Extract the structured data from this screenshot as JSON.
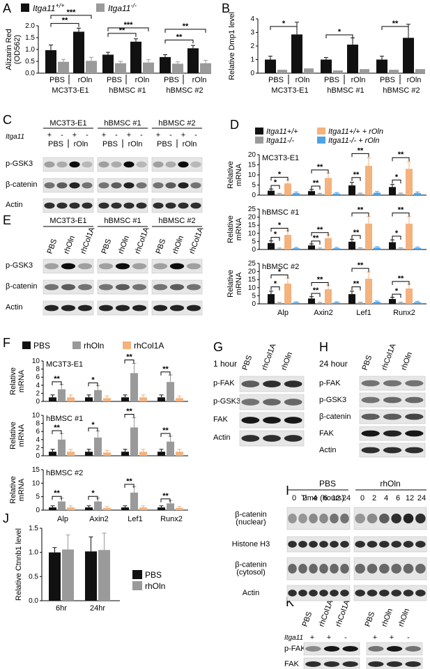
{
  "panel_letters": [
    "A",
    "B",
    "C",
    "D",
    "E",
    "F",
    "G",
    "H",
    "I",
    "J",
    "K"
  ],
  "legend_A": [
    {
      "label": "Itga11",
      "sup": "+/+",
      "color": "#111111"
    },
    {
      "label": "Itga11",
      "sup": "-/-",
      "color": "#9a9a9a"
    }
  ],
  "colors": {
    "wt": "#111111",
    "ko": "#9a9a9a",
    "wt_rOln": "#f4b27d",
    "ko_rOln": "#4ea3e6",
    "pbs": "#111111",
    "rhOln": "#9a9a9a",
    "rhCol1A": "#f4b27d"
  },
  "stars": [
    "*",
    "**",
    "***"
  ],
  "chart_data": [
    {
      "panel": "A",
      "type": "bar",
      "ylabel": "Alizarin Red\n(OD562)",
      "ylim": [
        0,
        2.0
      ],
      "yticks": [
        "0.0",
        "0.5",
        "1.0",
        "1.5",
        "2.0"
      ],
      "groups": [
        "MC3T3-E1",
        "hBMSC #1",
        "hBMSC #2"
      ],
      "conditions": [
        "PBS",
        "rOln"
      ],
      "series": [
        {
          "name": "Itga11+/+",
          "values": [
            0.97,
            1.75,
            0.78,
            1.33,
            0.68,
            1.05
          ]
        },
        {
          "name": "Itga11-/-",
          "values": [
            0.48,
            0.52,
            0.42,
            0.45,
            0.4,
            0.42
          ]
        }
      ],
      "errors": [
        [
          0.22,
          0.15,
          0.1,
          0.12,
          0.1,
          0.12
        ],
        [
          0.1,
          0.15,
          0.08,
          0.12,
          0.08,
          0.12
        ]
      ]
    },
    {
      "panel": "B",
      "type": "bar",
      "ylabel": "Relative Dmp1 level",
      "ylim": [
        0,
        4
      ],
      "yticks": [
        "0",
        "1",
        "2",
        "3",
        "4"
      ],
      "groups": [
        "MC3T3-E1",
        "hBMSC #1",
        "hBMSC #2"
      ],
      "conditions": [
        "PBS",
        "rOln"
      ],
      "series": [
        {
          "name": "Itga11+/+",
          "values": [
            1.0,
            2.85,
            1.0,
            2.1,
            1.0,
            2.6
          ]
        },
        {
          "name": "Itga11-/-",
          "values": [
            0.25,
            0.35,
            0.2,
            0.3,
            0.25,
            0.3
          ]
        }
      ],
      "errors": [
        [
          0.25,
          0.9,
          0.15,
          0.5,
          0.25,
          1.0
        ],
        [
          0.05,
          0.08,
          0.05,
          0.06,
          0.05,
          0.06
        ]
      ]
    },
    {
      "panel": "D",
      "type": "bar",
      "ylabel": "Relative\nmRNA",
      "categories": [
        "Alp",
        "Axin2",
        "Lef1",
        "Runx2"
      ],
      "legend": [
        "Itga11+/+",
        "Itga11-/-",
        "Itga11+/+ + rOln",
        "Itga11-/- + rOln"
      ],
      "subplots": [
        {
          "label": "MC3T3-E1",
          "ylim": [
            0,
            20
          ],
          "yticks": [
            "0",
            "5",
            "10",
            "15",
            "20"
          ],
          "values": [
            [
              2.2,
              0.5,
              5.8,
              1.0
            ],
            [
              2.0,
              0.5,
              8.5,
              0.8
            ],
            [
              4.8,
              0.6,
              14.5,
              1.2
            ],
            [
              4.0,
              0.6,
              13.0,
              1.0
            ]
          ]
        },
        {
          "label": "hBMSC #1",
          "ylim": [
            0,
            25
          ],
          "yticks": [
            "0",
            "5",
            "10",
            "15",
            "20",
            "25"
          ],
          "values": [
            [
              4.0,
              0.5,
              9.0,
              0.8
            ],
            [
              2.5,
              0.5,
              7.0,
              0.8
            ],
            [
              4.8,
              0.6,
              16.0,
              1.2
            ],
            [
              4.5,
              0.6,
              16.0,
              1.0
            ]
          ]
        },
        {
          "label": "hBMSC #2",
          "ylim": [
            0,
            25
          ],
          "yticks": [
            "0",
            "5",
            "10",
            "15",
            "20",
            "25"
          ],
          "values": [
            [
              6.0,
              0.5,
              12.5,
              0.8
            ],
            [
              3.3,
              0.5,
              9.0,
              0.8
            ],
            [
              6.0,
              0.6,
              15.5,
              1.2
            ],
            [
              3.0,
              0.6,
              9.5,
              1.0
            ]
          ]
        }
      ]
    },
    {
      "panel": "F",
      "type": "bar",
      "ylabel": "Relative\nmRNA",
      "categories": [
        "Alp",
        "Axin2",
        "Lef1",
        "Runx2"
      ],
      "legend": [
        "PBS",
        "rhOln",
        "rhCol1A"
      ],
      "subplots": [
        {
          "label": "MC3T3-E1",
          "ylim": [
            0,
            10
          ],
          "yticks": [
            "0",
            "2",
            "4",
            "6",
            "8",
            "10"
          ],
          "values": [
            [
              1.0,
              3.0,
              1.0
            ],
            [
              1.0,
              2.8,
              0.8
            ],
            [
              1.0,
              7.0,
              1.0
            ],
            [
              1.0,
              4.8,
              0.8
            ]
          ]
        },
        {
          "label": "hBMSC #1",
          "ylim": [
            0,
            10
          ],
          "yticks": [
            "0",
            "2",
            "4",
            "6",
            "8",
            "10"
          ],
          "values": [
            [
              1.0,
              4.0,
              1.0
            ],
            [
              1.0,
              4.5,
              0.8
            ],
            [
              1.0,
              7.0,
              1.0
            ],
            [
              1.0,
              3.5,
              1.0
            ]
          ]
        },
        {
          "label": "hBMSC #2",
          "ylim": [
            0,
            15
          ],
          "yticks": [
            "0",
            "5",
            "10",
            "15"
          ],
          "values": [
            [
              1.0,
              3.2,
              1.0
            ],
            [
              1.0,
              3.2,
              0.8
            ],
            [
              1.0,
              6.5,
              1.0
            ],
            [
              1.0,
              2.5,
              0.8
            ]
          ]
        }
      ]
    },
    {
      "panel": "J",
      "type": "bar",
      "ylabel": "Relative Ctnnb1 level",
      "ylim": [
        0,
        1.5
      ],
      "yticks": [
        "0.0",
        "0.5",
        "1.0",
        "1.5"
      ],
      "categories": [
        "6hr",
        "24hr"
      ],
      "legend": [
        "PBS",
        "rhOln"
      ],
      "series": [
        {
          "name": "PBS",
          "values": [
            1.0,
            1.02
          ]
        },
        {
          "name": "rhOln",
          "values": [
            1.06,
            1.05
          ]
        }
      ],
      "errors": [
        [
          0.1,
          0.3
        ],
        [
          0.3,
          0.35
        ]
      ]
    }
  ],
  "panel_C": {
    "columns": [
      "MC3T3-E1",
      "hBMSC #1",
      "hBMSC #2"
    ],
    "gene": "Itga11",
    "signs": [
      "+",
      "-",
      "+",
      "-"
    ],
    "conds": [
      "PBS",
      "rOln"
    ],
    "rows": [
      "p-GSK3",
      "β-catenin",
      "Actin"
    ]
  },
  "panel_E": {
    "columns": [
      "MC3T3-E1",
      "hBMSC #1",
      "hBMSC #2"
    ],
    "lanes": [
      "PBS",
      "rhOln",
      "rhCol1A"
    ],
    "rows": [
      "p-GSK3",
      "β-catenin",
      "Actin"
    ]
  },
  "panel_G": {
    "time": "1 hour",
    "lanes": [
      "PBS",
      "rhCol1A",
      "rhOln"
    ],
    "rows": [
      "p-FAK",
      "p-GSK3",
      "FAK",
      "Actin"
    ]
  },
  "panel_H": {
    "time": "24 hour",
    "lanes": [
      "PBS",
      "rhCol1A",
      "rhOln"
    ],
    "rows": [
      "p-FAK",
      "p-GSK3",
      "β-catenin",
      "FAK",
      "Actin"
    ]
  },
  "panel_I": {
    "time_label": "Time (hours)",
    "conds": [
      "PBS",
      "rhOln"
    ],
    "times": [
      "0",
      "2",
      "4",
      "6",
      "12",
      "24"
    ],
    "rows": [
      "β-catenin\n(nuclear)",
      "Histone H3",
      "β-catenin\n(cytosol)",
      "Actin"
    ]
  },
  "panel_K": {
    "gene": "Itga11",
    "lanes_left": [
      "PBS",
      "rhCol1A",
      "rhCol1A"
    ],
    "lanes_right": [
      "PBS",
      "rhOln",
      "rhOln"
    ],
    "signs": [
      "+",
      "+",
      "-"
    ],
    "rows": [
      "p-FAK",
      "FAK"
    ]
  }
}
